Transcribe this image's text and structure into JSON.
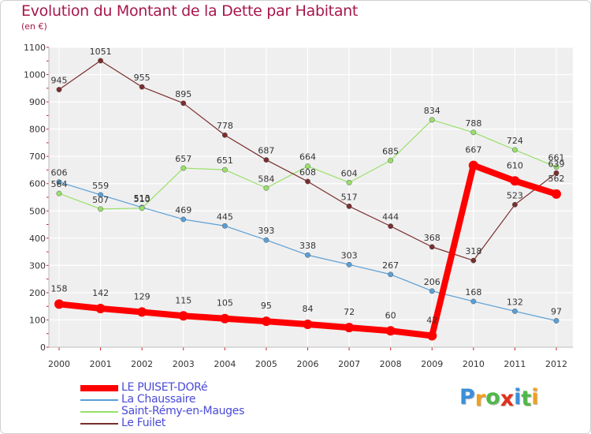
{
  "title": "Evolution du Montant de la Dette par Habitant",
  "subtitle": "(en €)",
  "chart_data": {
    "type": "line",
    "title": "Evolution du Montant de la Dette par Habitant",
    "ylabel": "(en €)",
    "xlabel": "",
    "x": [
      "2000",
      "2001",
      "2002",
      "2003",
      "2004",
      "2005",
      "2006",
      "2007",
      "2008",
      "2009",
      "2010",
      "2011",
      "2012"
    ],
    "ylim": [
      0,
      1100
    ],
    "yticks": [
      0,
      100,
      200,
      300,
      400,
      500,
      600,
      700,
      800,
      900,
      1000,
      1100
    ],
    "grid": true,
    "legend_position": "bottom-left",
    "series": [
      {
        "name": "LE PUISET-DORé",
        "color": "#ff0000",
        "values": [
          158,
          142,
          129,
          115,
          105,
          95,
          84,
          72,
          60,
          42,
          667,
          610,
          562
        ]
      },
      {
        "name": "La Chaussaire",
        "color": "#5b9fd6",
        "values": [
          606,
          559,
          513,
          469,
          445,
          393,
          338,
          303,
          267,
          206,
          168,
          132,
          97
        ]
      },
      {
        "name": "Saint-Rémy-en-Mauges",
        "color": "#99e06a",
        "values": [
          564,
          507,
          510,
          657,
          651,
          584,
          664,
          604,
          685,
          834,
          788,
          724,
          661
        ]
      },
      {
        "name": "Le Fuilet",
        "color": "#7a2e2e",
        "values": [
          945,
          1051,
          955,
          895,
          778,
          687,
          608,
          517,
          444,
          368,
          318,
          523,
          639
        ]
      }
    ]
  },
  "logo": {
    "letters": [
      "P",
      "r",
      "o",
      "x",
      "i",
      "t",
      "i"
    ],
    "colors": [
      "#3a8fd9",
      "#f0a020",
      "#50b848",
      "#e0301e",
      "#3a8fd9",
      "#50b848",
      "#f0a020"
    ]
  }
}
